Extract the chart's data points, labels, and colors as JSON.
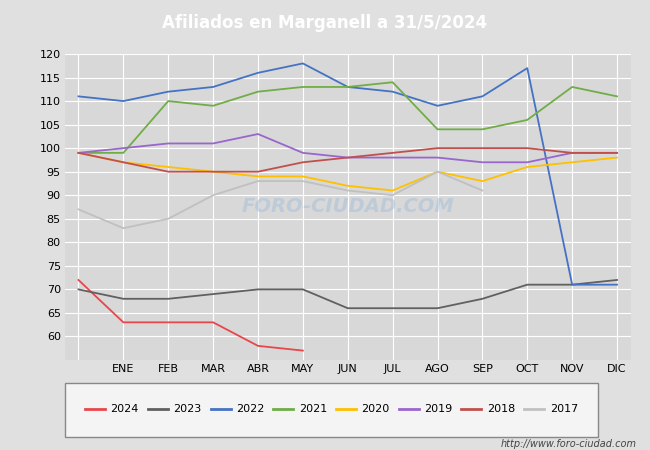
{
  "title": "Afiliados en Marganell a 31/5/2024",
  "title_color": "#ffffff",
  "title_bg_color": "#4472c4",
  "months": [
    "",
    "ENE",
    "FEB",
    "MAR",
    "ABR",
    "MAY",
    "JUN",
    "JUL",
    "AGO",
    "SEP",
    "OCT",
    "NOV",
    "DIC"
  ],
  "ylim": [
    55,
    120
  ],
  "yticks": [
    60,
    65,
    70,
    75,
    80,
    85,
    90,
    95,
    100,
    105,
    110,
    115,
    120
  ],
  "series": {
    "2024": {
      "color": "#e8464a",
      "data": [
        72,
        63,
        63,
        63,
        58,
        57,
        null,
        null,
        null,
        null,
        null,
        null,
        null
      ]
    },
    "2023": {
      "color": "#606060",
      "data": [
        70,
        68,
        68,
        69,
        70,
        70,
        66,
        66,
        66,
        68,
        71,
        71,
        72
      ]
    },
    "2022": {
      "color": "#4472c4",
      "data": [
        111,
        110,
        112,
        113,
        116,
        118,
        113,
        112,
        109,
        111,
        117,
        71,
        71
      ]
    },
    "2021": {
      "color": "#70ad47",
      "data": [
        99,
        99,
        110,
        109,
        112,
        113,
        113,
        114,
        104,
        104,
        106,
        113,
        111
      ]
    },
    "2020": {
      "color": "#ffc000",
      "data": [
        99,
        97,
        96,
        95,
        94,
        94,
        92,
        91,
        95,
        93,
        96,
        97,
        98
      ]
    },
    "2019": {
      "color": "#9966cc",
      "data": [
        99,
        100,
        101,
        101,
        103,
        99,
        98,
        98,
        98,
        97,
        97,
        99,
        99
      ]
    },
    "2018": {
      "color": "#c0504d",
      "data": [
        99,
        97,
        95,
        95,
        95,
        97,
        98,
        99,
        100,
        100,
        100,
        99,
        99
      ]
    },
    "2017": {
      "color": "#c0c0c0",
      "data": [
        87,
        83,
        85,
        90,
        93,
        93,
        91,
        90,
        95,
        91,
        null,
        null,
        null
      ]
    }
  },
  "bg_color": "#e0e0e0",
  "plot_bg_color": "#d8d8d8",
  "grid_color": "#ffffff",
  "url_text": "http://www.foro-ciudad.com",
  "legend_order": [
    "2024",
    "2023",
    "2022",
    "2021",
    "2020",
    "2019",
    "2018",
    "2017"
  ],
  "watermark": "FORO-CIUDAD.COM"
}
